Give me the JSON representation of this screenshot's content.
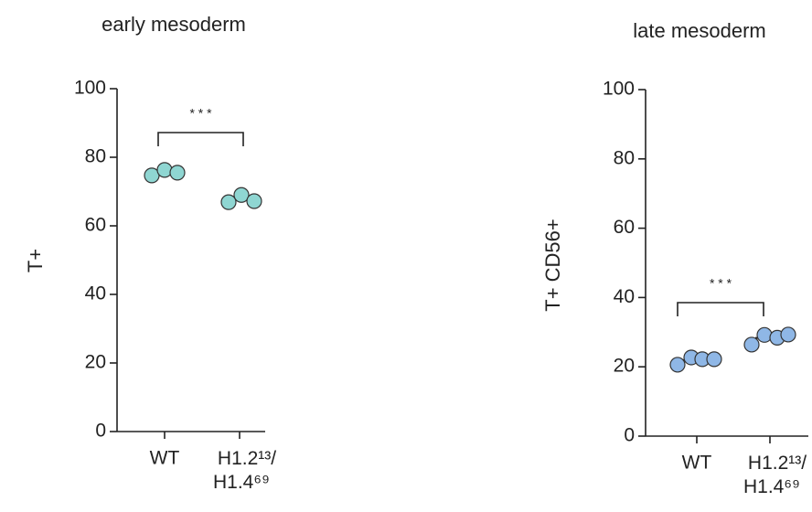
{
  "chart_data": [
    {
      "type": "dot",
      "title": "early mesoderm",
      "ylabel": "T+",
      "categories": [
        "WT",
        "H1.2¹³/H1.4⁶⁹"
      ],
      "values": [
        [
          74.7,
          76.3,
          75.5
        ],
        [
          66.9,
          69,
          67.2
        ]
      ],
      "color": "#8fd6d2",
      "ylim": [
        0,
        100
      ],
      "yticks": [
        0,
        20,
        40,
        60,
        80,
        100
      ],
      "significance": "* * *"
    },
    {
      "type": "dot",
      "title": "late mesoderm",
      "ylabel": "T+ CD56+",
      "categories": [
        "WT",
        "H1.2¹³/H1.4⁶⁹"
      ],
      "values": [
        [
          20.6,
          22.7,
          22.2,
          22.2
        ],
        [
          26.4,
          29.2,
          28.4,
          29.3
        ]
      ],
      "color": "#8fb7e6",
      "ylim": [
        0,
        100
      ],
      "yticks": [
        0,
        20,
        40,
        60,
        80,
        100
      ],
      "significance": "* * *"
    }
  ]
}
